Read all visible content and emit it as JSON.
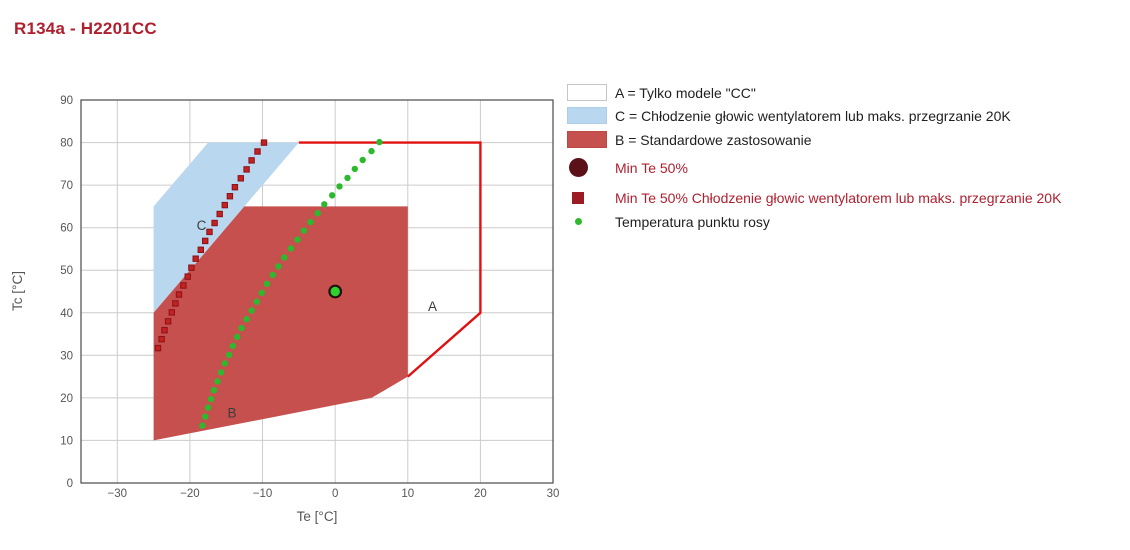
{
  "header": {
    "title": "R134a - H2201CC",
    "title_color": "#b01f2e"
  },
  "chart_data": {
    "type": "area",
    "title": "R134a - H2201CC",
    "xlabel": "Te [°C]",
    "ylabel": "Tc [°C]",
    "xlim": [
      -35,
      30
    ],
    "ylim": [
      0,
      90
    ],
    "xticks": [
      -30,
      -20,
      -10,
      0,
      10,
      20,
      30
    ],
    "yticks": [
      0,
      10,
      20,
      30,
      40,
      50,
      60,
      70,
      80,
      90
    ],
    "grid": true,
    "legend_position": "right",
    "colors": {
      "grid": "#cccccc",
      "frame": "#4a4a4a",
      "tick_text": "#565656",
      "region_label_text": "#3d3d3d"
    },
    "regions": [
      {
        "name": "C",
        "fill": "#bad7f0",
        "points": [
          [
            -25,
            40
          ],
          [
            -25,
            65
          ],
          [
            -17.5,
            80
          ],
          [
            -5,
            80
          ]
        ],
        "label_pos": [
          -18.4,
          60.5
        ]
      },
      {
        "name": "B",
        "fill": "#c5504d",
        "points": [
          [
            -25,
            10
          ],
          [
            -25,
            40
          ],
          [
            -12.5,
            65
          ],
          [
            10,
            65
          ],
          [
            10,
            25
          ],
          [
            5,
            20
          ]
        ],
        "label_pos": [
          -14.2,
          16.5
        ]
      },
      {
        "name": "A",
        "outline": "#e01111",
        "outline_width": 2.4,
        "points": [
          [
            -5,
            80
          ],
          [
            20,
            80
          ],
          [
            20,
            40
          ],
          [
            10,
            25
          ]
        ],
        "label_pos": [
          13.4,
          41.5
        ]
      }
    ],
    "series": [
      {
        "name": "Min Te 50% Chłodzenie głowic wentylatorem lub maks. przegrzanie 20K",
        "marker": "square",
        "color": "#c32222",
        "edge": "#8a1218",
        "points": [
          [
            -24.4,
            31.7
          ],
          [
            -23.9,
            33.8
          ],
          [
            -23.5,
            35.9
          ],
          [
            -23.0,
            38.0
          ],
          [
            -22.5,
            40.1
          ],
          [
            -22.0,
            42.2
          ],
          [
            -21.5,
            44.3
          ],
          [
            -20.9,
            46.4
          ],
          [
            -20.3,
            48.5
          ],
          [
            -19.8,
            50.6
          ],
          [
            -19.2,
            52.7
          ],
          [
            -18.5,
            54.8
          ],
          [
            -17.9,
            56.9
          ],
          [
            -17.3,
            59.0
          ],
          [
            -16.6,
            61.1
          ],
          [
            -15.9,
            63.2
          ],
          [
            -15.2,
            65.3
          ],
          [
            -14.5,
            67.4
          ],
          [
            -13.8,
            69.5
          ],
          [
            -13.0,
            71.6
          ],
          [
            -12.2,
            73.7
          ],
          [
            -11.5,
            75.8
          ],
          [
            -10.7,
            77.9
          ],
          [
            -9.8,
            80.0
          ]
        ]
      },
      {
        "name": "Temperatura punktu rosy",
        "marker": "dot",
        "color": "#2eb82e",
        "points": [
          [
            -18.3,
            13.5
          ],
          [
            -17.9,
            15.6
          ],
          [
            -17.5,
            17.7
          ],
          [
            -17.1,
            19.7
          ],
          [
            -16.7,
            21.8
          ],
          [
            -16.2,
            23.9
          ],
          [
            -15.7,
            26.0
          ],
          [
            -15.2,
            28.1
          ],
          [
            -14.6,
            30.1
          ],
          [
            -14.1,
            32.2
          ],
          [
            -13.5,
            34.3
          ],
          [
            -12.9,
            36.4
          ],
          [
            -12.2,
            38.5
          ],
          [
            -11.5,
            40.5
          ],
          [
            -10.8,
            42.6
          ],
          [
            -10.1,
            44.7
          ],
          [
            -9.4,
            46.8
          ],
          [
            -8.6,
            48.9
          ],
          [
            -7.8,
            50.9
          ],
          [
            -7.0,
            53.0
          ],
          [
            -6.1,
            55.1
          ],
          [
            -5.2,
            57.2
          ],
          [
            -4.3,
            59.3
          ],
          [
            -3.4,
            61.3
          ],
          [
            -2.4,
            63.4
          ],
          [
            -1.5,
            65.5
          ],
          [
            -0.4,
            67.6
          ],
          [
            0.6,
            69.7
          ],
          [
            1.7,
            71.7
          ],
          [
            2.7,
            73.8
          ],
          [
            3.8,
            75.9
          ],
          [
            5.0,
            78.0
          ],
          [
            6.1,
            80.1
          ]
        ]
      },
      {
        "name": "Min Te 50%",
        "marker": "circle",
        "color": "#2ed12e",
        "edge": "#231111",
        "points": [
          [
            0,
            45
          ]
        ]
      }
    ]
  },
  "legend": {
    "items": [
      {
        "label": "A = Tylko modele \"CC\"",
        "marker": "swatch",
        "color": "#ffffff",
        "border": "#c6c6c6",
        "text_color": "#1f1f1f"
      },
      {
        "label": "C = Chłodzenie głowic wentylatorem lub maks. przegrzanie 20K",
        "marker": "swatch",
        "color": "#bad7f0",
        "border": "#aecde9",
        "text_color": "#1f1f1f"
      },
      {
        "label": "B = Standardowe zastosowanie",
        "marker": "swatch",
        "color": "#c5504d",
        "border": "#bb4a47",
        "text_color": "#1f1f1f"
      },
      {
        "label": "Min Te 50%",
        "marker": "circle",
        "color": "#5a1118",
        "border": "#5a1118",
        "text_color": "#b01f2e"
      },
      {
        "label": "Min Te 50% Chłodzenie głowic wentylatorem lub maks. przegrzanie 20K",
        "marker": "square",
        "color": "#9c1c24",
        "border": "#9c1c24",
        "text_color": "#b01f2e"
      },
      {
        "label": "Temperatura punktu rosy",
        "marker": "dot",
        "color": "#2eb82e",
        "border": "#2eb82e",
        "text_color": "#1f1f1f"
      }
    ]
  }
}
